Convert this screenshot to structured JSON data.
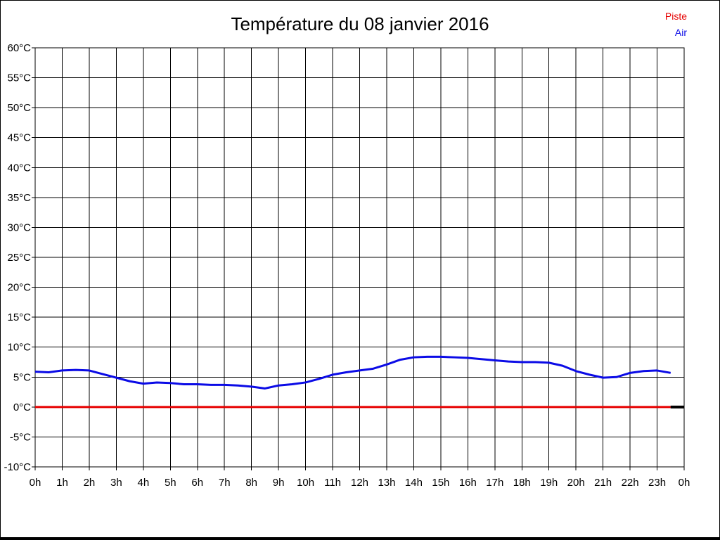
{
  "chart": {
    "title": "Température du 08 janvier 2016",
    "legend": {
      "piste_label": "Piste",
      "air_label": "Air"
    },
    "colors": {
      "piste": "#e60000",
      "air": "#0b0be6",
      "end_segment": "#000000",
      "grid": "#000000",
      "text": "#000000",
      "background": "#ffffff"
    }
  },
  "chart_data": {
    "type": "line",
    "title": "Température du 08 janvier 2016",
    "xlabel": "",
    "ylabel": "",
    "x_unit": "hour of day",
    "y_unit": "°C",
    "xlim": [
      0,
      24
    ],
    "ylim": [
      -10,
      60
    ],
    "ytick_step": 5,
    "grid": true,
    "legend_position": "top-right",
    "ytick_labels": [
      "60°C",
      "55°C",
      "50°C",
      "45°C",
      "40°C",
      "35°C",
      "30°C",
      "25°C",
      "20°C",
      "15°C",
      "10°C",
      "5°C",
      "0°C",
      "-5°C",
      "-10°C"
    ],
    "xtick_labels": [
      "0h",
      "1h",
      "2h",
      "3h",
      "4h",
      "5h",
      "6h",
      "7h",
      "8h",
      "9h",
      "10h",
      "11h",
      "12h",
      "13h",
      "14h",
      "15h",
      "16h",
      "17h",
      "18h",
      "19h",
      "20h",
      "21h",
      "22h",
      "23h",
      "0h"
    ],
    "x": [
      0,
      0.5,
      1,
      1.5,
      2,
      2.5,
      3,
      3.5,
      4,
      4.5,
      5,
      5.5,
      6,
      6.5,
      7,
      7.5,
      8,
      8.5,
      9,
      9.5,
      10,
      10.5,
      11,
      11.5,
      12,
      12.5,
      13,
      13.5,
      14,
      14.5,
      15,
      15.5,
      16,
      16.5,
      17,
      17.5,
      18,
      18.5,
      19,
      19.5,
      20,
      20.5,
      21,
      21.5,
      22,
      22.5,
      23,
      23.5
    ],
    "series": [
      {
        "name": "Piste",
        "color": "#e60000",
        "stroke_width": 3,
        "values": [
          0,
          0,
          0,
          0,
          0,
          0,
          0,
          0,
          0,
          0,
          0,
          0,
          0,
          0,
          0,
          0,
          0,
          0,
          0,
          0,
          0,
          0,
          0,
          0,
          0,
          0,
          0,
          0,
          0,
          0,
          0,
          0,
          0,
          0,
          0,
          0,
          0,
          0,
          0,
          0,
          0,
          0,
          0,
          0,
          0,
          0,
          0,
          0
        ]
      },
      {
        "name": "Air",
        "color": "#0b0be6",
        "stroke_width": 3,
        "values": [
          5.9,
          5.8,
          6.1,
          6.2,
          6.1,
          5.5,
          4.9,
          4.3,
          3.9,
          4.1,
          4.0,
          3.8,
          3.8,
          3.7,
          3.7,
          3.6,
          3.4,
          3.1,
          3.6,
          3.8,
          4.1,
          4.7,
          5.4,
          5.8,
          6.1,
          6.4,
          7.1,
          7.9,
          8.3,
          8.4,
          8.4,
          8.3,
          8.2,
          8.0,
          7.8,
          7.6,
          7.5,
          7.5,
          7.4,
          6.9,
          6.0,
          5.4,
          4.9,
          5.0,
          5.7,
          6.0,
          6.1,
          5.7
        ]
      }
    ],
    "end_segment": {
      "name": "piste-end-black",
      "color": "#000000",
      "stroke_width": 4,
      "x": [
        23.5,
        24
      ],
      "values": [
        0,
        0
      ]
    }
  }
}
